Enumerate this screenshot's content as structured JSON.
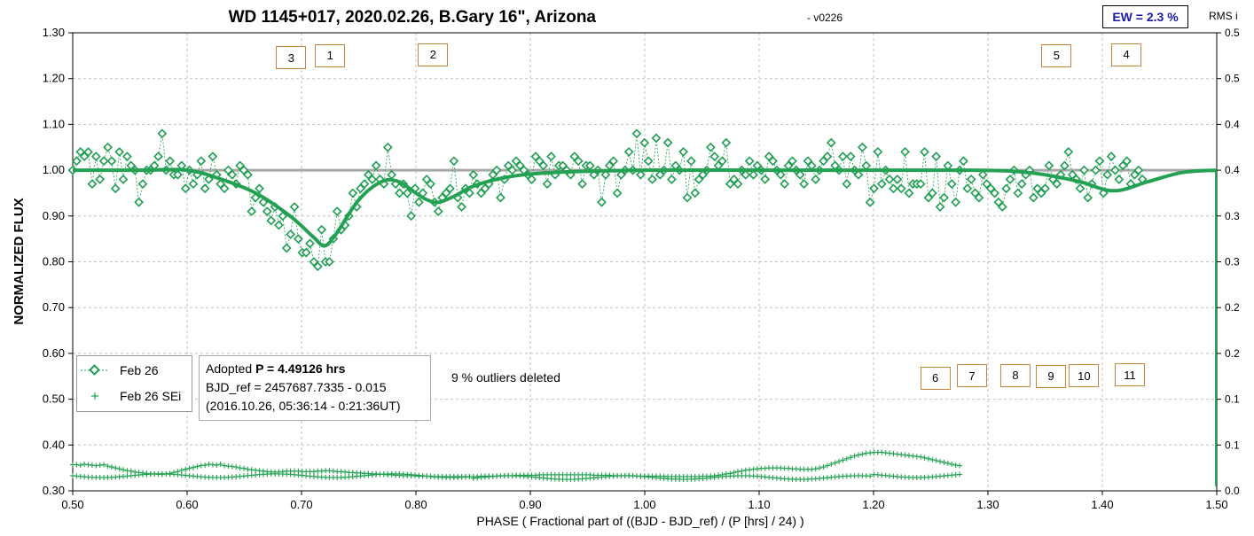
{
  "chart_data": {
    "type": "scatter",
    "title": "WD 1145+017, 2020.02.26, B.Gary 16\", Arizona",
    "title_suffix": "-  v0226",
    "xlabel": "PHASE  ( Fractional part of ((BJD - BJD_ref) / (P [hrs] / 24) )",
    "ylabel": "NORMALIZED FLUX",
    "y2label": "RMS i",
    "xlim": [
      0.5,
      1.5
    ],
    "ylim": [
      0.3,
      1.3
    ],
    "y2lim": [
      0.0,
      0.5
    ],
    "xticks": [
      "0.50",
      "0.60",
      "0.70",
      "0.80",
      "0.90",
      "1.00",
      "1.10",
      "1.20",
      "1.30",
      "1.40",
      "1.50"
    ],
    "yticks": [
      "0.30",
      "0.40",
      "0.50",
      "0.60",
      "0.70",
      "0.80",
      "0.90",
      "1.00",
      "1.10",
      "1.20",
      "1.30"
    ],
    "y2ticks": [
      "0.0",
      "0.1",
      "0.1",
      "0.2",
      "0.2",
      "0.3",
      "0.3",
      "0.4",
      "0.4",
      "0.5",
      "0.5"
    ],
    "grid": true,
    "legend_position": "bottom-left",
    "reference_line_y": 1.0,
    "colors": {
      "series": "#1e9e50",
      "model": "#23a052",
      "sei": "#1ea04e",
      "reference": "#a0a0a0",
      "grid": "#c0c0c0"
    },
    "series": [
      {
        "name": "Feb 26",
        "marker": "diamond",
        "x_start": 0.5,
        "x_step": 0.0034,
        "y": [
          1.0,
          1.02,
          1.04,
          1.03,
          1.04,
          0.97,
          1.03,
          0.98,
          1.02,
          1.05,
          1.02,
          0.96,
          1.04,
          0.98,
          1.03,
          1.01,
          1.0,
          0.93,
          0.97,
          1.0,
          1.0,
          1.01,
          1.03,
          1.08,
          1.0,
          1.02,
          0.99,
          0.99,
          1.01,
          0.96,
          1.0,
          0.97,
          0.99,
          1.02,
          0.96,
          0.98,
          1.03,
          0.99,
          0.97,
          0.96,
          1.0,
          0.99,
          0.97,
          1.01,
          1.0,
          0.99,
          0.91,
          0.94,
          0.96,
          0.93,
          0.91,
          0.89,
          0.92,
          0.88,
          0.9,
          0.83,
          0.86,
          0.92,
          0.85,
          0.82,
          0.82,
          0.84,
          0.8,
          0.79,
          0.87,
          0.8,
          0.8,
          0.85,
          0.91,
          0.87,
          0.88,
          0.9,
          0.95,
          0.92,
          0.96,
          0.97,
          0.99,
          0.98,
          1.01,
          0.98,
          0.97,
          1.05,
          0.99,
          0.97,
          0.95,
          0.97,
          0.95,
          0.9,
          0.96,
          0.93,
          0.95,
          0.98,
          0.97,
          0.93,
          0.91,
          0.94,
          0.95,
          0.96,
          1.02,
          0.94,
          0.92,
          0.96,
          0.95,
          0.99,
          0.97,
          0.95,
          0.96,
          0.97,
          0.99,
          1.0,
          0.94,
          0.98,
          1.01,
          1.0,
          1.02,
          1.01,
          1.0,
          0.99,
          0.98,
          1.03,
          1.02,
          1.01,
          0.97,
          1.03,
          0.99,
          1.01,
          1.01,
          1.0,
          0.99,
          1.03,
          1.02,
          0.97,
          1.01,
          1.01,
          0.99,
          1.0,
          0.93,
          0.99,
          1.01,
          1.02,
          0.95,
          0.99,
          1.0,
          1.04,
          1.0,
          1.08,
          0.99,
          1.06,
          1.02,
          0.98,
          1.07,
          0.99,
          1.0,
          1.06,
          0.98,
          1.01,
          1.0,
          1.04,
          0.94,
          1.02,
          0.95,
          0.98,
          0.99,
          1.0,
          1.05,
          1.03,
          1.01,
          1.02,
          1.06,
          0.97,
          0.98,
          0.97,
          1.0,
          0.99,
          1.02,
          0.99,
          1.01,
          1.0,
          0.98,
          1.03,
          1.02,
          1.0,
          0.99,
          0.97,
          1.01,
          1.02,
          1.0,
          0.99,
          0.97,
          1.02,
          1.01,
          0.98,
          1.0,
          1.02,
          1.03,
          1.06,
          1.01,
          1.0,
          1.03,
          0.97,
          1.03,
          1.0,
          0.99,
          1.05,
          1.01,
          0.93,
          0.96,
          1.04,
          0.97,
          1.0,
          0.98,
          0.96,
          0.98,
          0.96,
          1.04,
          0.95,
          0.97,
          0.97,
          0.97,
          1.04,
          0.94,
          0.95,
          1.03,
          0.92,
          0.94,
          1.01,
          0.97,
          0.93,
          1.0,
          1.02,
          0.96,
          0.98,
          0.95,
          0.94,
          0.99,
          0.97,
          0.96,
          0.95,
          0.93,
          0.92,
          0.96,
          0.98,
          1.0,
          0.95,
          0.97,
          0.99,
          1.0,
          0.94,
          0.96,
          0.95,
          0.96,
          1.01,
          0.98,
          0.97,
          0.99,
          1.01,
          1.04,
          0.99,
          0.98,
          0.96,
          1.0,
          0.94,
          0.97,
          1.0,
          1.02,
          0.95,
          0.99,
          1.03,
          1.0,
          0.98,
          1.01,
          1.02,
          0.97,
          0.99,
          1.0,
          0.98
        ]
      },
      {
        "name": "Feb 26 SEi",
        "marker": "plus",
        "x_start": 0.5,
        "x_step": 0.0034,
        "upper_y": [
          0.357,
          0.357,
          0.356,
          0.358,
          0.357,
          0.356,
          0.355,
          0.356,
          0.357,
          0.354,
          0.352,
          0.35,
          0.348,
          0.346,
          0.344,
          0.343,
          0.341,
          0.34,
          0.339,
          0.338,
          0.337,
          0.337,
          0.336,
          0.336,
          0.337,
          0.338,
          0.34,
          0.342,
          0.345,
          0.347,
          0.349,
          0.351,
          0.353,
          0.355,
          0.356,
          0.358,
          0.357,
          0.356,
          0.358,
          0.355,
          0.354,
          0.353,
          0.352,
          0.35,
          0.349,
          0.347,
          0.346,
          0.345,
          0.344,
          0.343,
          0.342,
          0.341,
          0.341,
          0.341,
          0.342,
          0.343,
          0.343,
          0.343,
          0.343,
          0.342,
          0.342,
          0.342,
          0.342,
          0.343,
          0.343,
          0.344,
          0.344,
          0.343,
          0.342,
          0.342,
          0.341,
          0.34,
          0.34,
          0.339,
          0.339,
          0.338,
          0.338,
          0.337,
          0.337,
          0.336,
          0.336,
          0.335,
          0.335,
          0.334,
          0.334,
          0.333,
          0.333,
          0.333,
          0.333,
          0.332,
          0.332,
          0.332,
          0.332,
          0.331,
          0.331,
          0.331,
          0.331,
          0.331,
          0.331,
          0.331,
          0.331,
          0.331,
          0.331,
          0.331,
          0.331,
          0.332,
          0.332,
          0.332,
          0.332,
          0.332,
          0.333,
          0.333,
          0.333,
          0.333,
          0.334,
          0.334,
          0.334,
          0.334,
          0.334,
          0.334,
          0.335,
          0.335,
          0.335,
          0.335,
          0.335,
          0.335,
          0.335,
          0.335,
          0.335,
          0.335,
          0.335,
          0.335,
          0.335,
          0.335,
          0.334,
          0.334,
          0.334,
          0.334,
          0.334,
          0.333,
          0.333,
          0.333,
          0.333,
          0.333,
          0.333,
          0.332,
          0.332,
          0.332,
          0.332,
          0.332,
          0.332,
          0.332,
          0.332,
          0.331,
          0.331,
          0.331,
          0.331,
          0.331,
          0.331,
          0.331,
          0.331,
          0.331,
          0.332,
          0.332,
          0.332,
          0.333,
          0.334,
          0.335,
          0.337,
          0.338,
          0.34,
          0.342,
          0.343,
          0.345,
          0.346,
          0.347,
          0.348,
          0.349,
          0.349,
          0.35,
          0.35,
          0.35,
          0.35,
          0.349,
          0.349,
          0.348,
          0.348,
          0.347,
          0.347,
          0.347,
          0.347,
          0.348,
          0.35,
          0.352,
          0.355,
          0.358,
          0.361,
          0.364,
          0.367,
          0.37,
          0.373,
          0.376,
          0.378,
          0.38,
          0.382,
          0.383,
          0.384,
          0.384,
          0.384,
          0.383,
          0.382,
          0.381,
          0.38,
          0.379,
          0.378,
          0.377,
          0.376,
          0.375,
          0.374,
          0.372,
          0.37,
          0.368,
          0.366,
          0.364,
          0.362,
          0.36,
          0.358,
          0.356,
          0.355
        ]
      }
    ],
    "model_curve": {
      "x": [
        0.5,
        0.56,
        0.6,
        0.63,
        0.66,
        0.69,
        0.71,
        0.72,
        0.73,
        0.75,
        0.77,
        0.785,
        0.8,
        0.81,
        0.82,
        0.835,
        0.85,
        0.88,
        0.92,
        1.0,
        1.1,
        1.2,
        1.28,
        1.32,
        1.35,
        1.38,
        1.41,
        1.44,
        1.47,
        1.5
      ],
      "y": [
        1.0,
        1.0,
        1.0,
        0.98,
        0.95,
        0.9,
        0.855,
        0.835,
        0.86,
        0.935,
        0.975,
        0.975,
        0.95,
        0.935,
        0.93,
        0.945,
        0.965,
        0.985,
        0.995,
        1.0,
        1.0,
        1.0,
        1.0,
        0.998,
        0.99,
        0.975,
        0.955,
        0.975,
        0.995,
        1.0
      ]
    },
    "annotations": [
      {
        "label": "3",
        "x": 0.691,
        "y": 1.245
      },
      {
        "label": "1",
        "x": 0.725,
        "y": 1.25
      },
      {
        "label": "2",
        "x": 0.815,
        "y": 1.252
      },
      {
        "label": "5",
        "x": 1.36,
        "y": 1.25
      },
      {
        "label": "4",
        "x": 1.421,
        "y": 1.252
      },
      {
        "label": "6",
        "x": 1.254,
        "y": 0.546
      },
      {
        "label": "7",
        "x": 1.286,
        "y": 0.551
      },
      {
        "label": "8",
        "x": 1.324,
        "y": 0.552
      },
      {
        "label": "9",
        "x": 1.355,
        "y": 0.55
      },
      {
        "label": "10",
        "x": 1.384,
        "y": 0.551
      },
      {
        "label": "11",
        "x": 1.424,
        "y": 0.553
      }
    ],
    "outliers_note": "9 % outliers deleted",
    "ew_label": "EW = 2.3 %",
    "info": {
      "line1_prefix": "Adopted ",
      "line1_bold": "P = 4.49126 hrs",
      "line2": "BJD_ref = 2457687.7335 - 0.015",
      "line3": "(2016.10.26, 05:36:14 - 0:21:36UT)"
    }
  }
}
